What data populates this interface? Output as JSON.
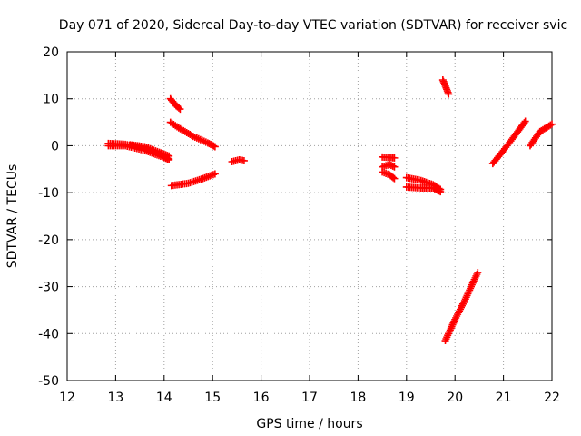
{
  "chart_data": {
    "type": "scatter",
    "title": "Day 071 of 2020, Sidereal Day-to-day VTEC variation (SDTVAR) for receiver svic",
    "xlabel": "GPS time / hours",
    "ylabel": "SDTVAR / TECUs",
    "xlim": [
      12,
      22
    ],
    "ylim": [
      -50,
      20
    ],
    "xticks": [
      "12",
      "13",
      "14",
      "15",
      "16",
      "17",
      "18",
      "19",
      "20",
      "21",
      "22"
    ],
    "yticks": [
      "20",
      "10",
      "0",
      "-10",
      "-20",
      "-30",
      "-40",
      "-50"
    ],
    "grid": true,
    "marker": "plus",
    "color": "#ff0000",
    "series": [
      {
        "tracks": [
          [
            [
              12.85,
              0.5
            ],
            [
              13.2,
              0.3
            ],
            [
              13.6,
              -0.6
            ],
            [
              13.9,
              -1.8
            ],
            [
              14.1,
              -2.8
            ]
          ],
          [
            [
              12.85,
              0.0
            ],
            [
              13.2,
              0.0
            ],
            [
              13.6,
              -1.0
            ],
            [
              14.0,
              -2.5
            ],
            [
              14.1,
              -3.0
            ]
          ],
          [
            [
              13.3,
              0.2
            ],
            [
              13.6,
              -0.2
            ],
            [
              13.9,
              -1.4
            ],
            [
              14.1,
              -2.2
            ]
          ],
          [
            [
              14.13,
              10.0
            ],
            [
              14.25,
              8.5
            ],
            [
              14.33,
              7.8
            ]
          ],
          [
            [
              14.13,
              5.0
            ],
            [
              14.3,
              3.8
            ],
            [
              14.6,
              2.0
            ],
            [
              14.9,
              0.6
            ],
            [
              15.05,
              -0.2
            ]
          ],
          [
            [
              14.15,
              -8.5
            ],
            [
              14.5,
              -8.0
            ],
            [
              14.8,
              -7.0
            ],
            [
              15.05,
              -6.0
            ]
          ],
          [
            [
              15.4,
              -3.4
            ],
            [
              15.55,
              -3.0
            ],
            [
              15.65,
              -3.2
            ]
          ],
          [
            [
              18.5,
              -2.4
            ],
            [
              18.65,
              -2.5
            ],
            [
              18.75,
              -2.6
            ]
          ],
          [
            [
              18.5,
              -4.5
            ],
            [
              18.65,
              -4.0
            ],
            [
              18.75,
              -4.5
            ]
          ],
          [
            [
              18.5,
              -5.6
            ],
            [
              18.65,
              -6.2
            ],
            [
              18.75,
              -7.0
            ]
          ],
          [
            [
              19.0,
              -6.8
            ],
            [
              19.3,
              -7.4
            ],
            [
              19.55,
              -8.3
            ],
            [
              19.7,
              -9.3
            ]
          ],
          [
            [
              19.0,
              -8.8
            ],
            [
              19.3,
              -9.0
            ],
            [
              19.55,
              -9.0
            ],
            [
              19.7,
              -9.8
            ]
          ],
          [
            [
              19.75,
              14.0
            ],
            [
              19.83,
              12.0
            ],
            [
              19.87,
              11.0
            ]
          ],
          [
            [
              19.8,
              -41.5
            ],
            [
              20.0,
              -37.0
            ],
            [
              20.2,
              -33.0
            ],
            [
              20.4,
              -28.5
            ],
            [
              20.47,
              -27.0
            ]
          ],
          [
            [
              20.78,
              -3.8
            ],
            [
              21.0,
              -1.0
            ],
            [
              21.2,
              1.7
            ],
            [
              21.45,
              5.2
            ]
          ],
          [
            [
              21.55,
              0.0
            ],
            [
              21.75,
              3.0
            ],
            [
              22.0,
              4.6
            ]
          ]
        ]
      }
    ]
  }
}
